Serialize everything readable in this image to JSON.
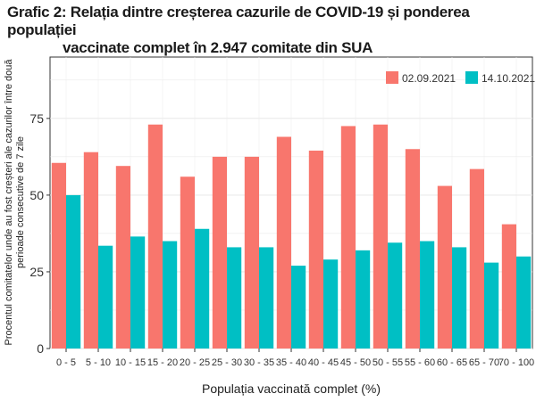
{
  "title": {
    "prefix": "Grafic 2:",
    "line1": "Relația dintre creșterea cazurile de COVID-19 și ponderea populației",
    "line2": "vaccinate complet în 2.947 comitate din SUA"
  },
  "chart_data": {
    "type": "bar",
    "xlabel": "Populația vaccinată complet (%)",
    "ylabel_lines": [
      "Procentul comitatelor unde au fost creșteri ale cazurilor între două",
      "perioade consecutive de 7 zile"
    ],
    "categories": [
      "0 - 5",
      "5 - 10",
      "10 - 15",
      "15 - 20",
      "20 - 25",
      "25 - 30",
      "30 - 35",
      "35 - 40",
      "40 - 45",
      "45 - 50",
      "50 - 55",
      "55 - 60",
      "60 - 65",
      "65 - 70",
      "70 - 100"
    ],
    "series": [
      {
        "name": "02.09.2021",
        "color": "#f8766d",
        "values": [
          60.5,
          64,
          59.5,
          73,
          56,
          62.5,
          62.5,
          69,
          64.5,
          72.5,
          73,
          65,
          53,
          58.5,
          40.5
        ]
      },
      {
        "name": "14.10.2021",
        "color": "#00bfc4",
        "values": [
          50,
          33.5,
          36.5,
          35,
          39,
          33,
          33,
          27,
          29,
          32,
          34.5,
          35,
          33,
          28,
          30
        ]
      }
    ],
    "ylim": [
      0,
      95
    ],
    "yticks": [
      0,
      25,
      50,
      75
    ],
    "grid": true,
    "legend_position": "top-right"
  }
}
